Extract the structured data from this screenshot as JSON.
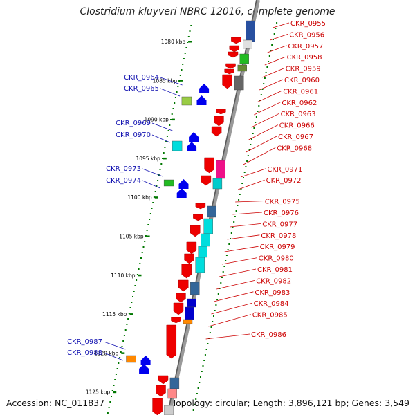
{
  "title": "Clostridium kluyveri NBRC 12016, complete genome",
  "footer": {
    "accession": "Accession: NC_011837",
    "summary": "Topology: circular; Length: 3,896,121 bp; Genes: 3,549"
  },
  "scale_labels": [
    "1080 kbp",
    "1085 kbp",
    "1090 kbp",
    "1095 kbp",
    "1100 kbp",
    "1105 kbp",
    "1110 kbp",
    "1115 kbp",
    "1120 kbp",
    "1125 kbp"
  ],
  "left_genes": [
    "CKR_0964",
    "CKR_0965",
    "CKR_0969",
    "CKR_0970",
    "CKR_0973",
    "CKR_0974",
    "CKR_0987",
    "CKR_0988"
  ],
  "right_genes": [
    "CKR_0955",
    "CKR_0956",
    "CKR_0957",
    "CKR_0958",
    "CKR_0959",
    "CKR_0960",
    "CKR_0961",
    "CKR_0962",
    "CKR_0963",
    "CKR_0966",
    "CKR_0967",
    "CKR_0968",
    "CKR_0971",
    "CKR_0972",
    "CKR_0975",
    "CKR_0976",
    "CKR_0977",
    "CKR_0978",
    "CKR_0979",
    "CKR_0980",
    "CKR_0981",
    "CKR_0982",
    "CKR_0983",
    "CKR_0984",
    "CKR_0985",
    "CKR_0986"
  ],
  "colors": {
    "left_label": "#1010b0",
    "right_label": "#cc0000",
    "forward_gene": "#ee0000",
    "reverse_gene": "#0000ee",
    "scale_ticks": "#007700"
  }
}
